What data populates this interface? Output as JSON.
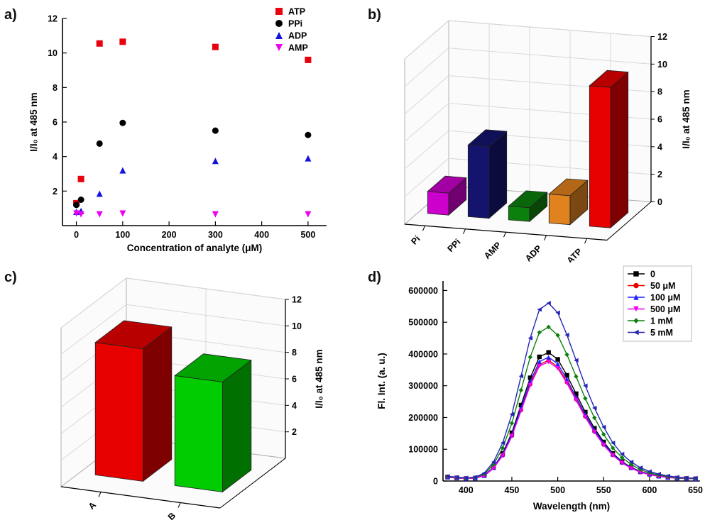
{
  "figure": {
    "panels": [
      {
        "label": "a)"
      },
      {
        "label": "b)"
      },
      {
        "label": "c)"
      },
      {
        "label": "d)"
      }
    ]
  },
  "chart_data": [
    {
      "panel": "a",
      "type": "scatter",
      "xlabel": "Concentration of analyte (μM)",
      "ylabel": "I/I₀ at 485 nm",
      "xlim": [
        -30,
        540
      ],
      "ylim": [
        0,
        12
      ],
      "xticks": [
        0,
        100,
        200,
        300,
        400,
        500
      ],
      "yticks": [
        2,
        4,
        6,
        8,
        10,
        12
      ],
      "grid": false,
      "legend_position": "top-right",
      "x": [
        0,
        10,
        50,
        100,
        300,
        500
      ],
      "series": [
        {
          "name": "ATP",
          "color": "#e8000d",
          "marker": "square",
          "values": [
            1.3,
            2.7,
            10.55,
            10.65,
            10.35,
            9.6
          ]
        },
        {
          "name": "PPi",
          "color": "#000000",
          "marker": "circle",
          "values": [
            1.2,
            1.5,
            4.75,
            5.95,
            5.5,
            5.25
          ]
        },
        {
          "name": "ADP",
          "color": "#1414e0",
          "marker": "triangle-up",
          "values": [
            0.8,
            0.85,
            1.85,
            3.2,
            3.75,
            3.9
          ]
        },
        {
          "name": "AMP",
          "color": "#f000f0",
          "marker": "triangle-down",
          "values": [
            0.7,
            0.65,
            0.65,
            0.7,
            0.65,
            0.65
          ]
        }
      ]
    },
    {
      "panel": "b",
      "type": "bar3d",
      "zlabel": "I/I₀ at 485 nm",
      "zlim": [
        0,
        12
      ],
      "zticks": [
        0,
        2,
        4,
        6,
        8,
        10,
        12
      ],
      "categories": [
        "Pi",
        "PPi",
        "AMP",
        "ADP",
        "ATP"
      ],
      "values": [
        1.6,
        5.2,
        1.0,
        2.1,
        10.2
      ],
      "colors": [
        "#cc00cc",
        "#14146e",
        "#0c800c",
        "#e0821e",
        "#e60000"
      ]
    },
    {
      "panel": "c",
      "type": "bar3d",
      "zlabel": "I/I₀ at 485 nm",
      "zlim": [
        0,
        12
      ],
      "zticks": [
        2,
        4,
        6,
        8,
        10,
        12
      ],
      "categories": [
        "A",
        "B"
      ],
      "values": [
        10,
        8.3
      ],
      "colors": [
        "#e60000",
        "#00cc00"
      ]
    },
    {
      "panel": "d",
      "type": "line",
      "xlabel": "Wavelength (nm)",
      "ylabel": "Fl. Int. (a. u.)",
      "xlim": [
        375,
        655
      ],
      "ylim": [
        0,
        630000
      ],
      "xticks": [
        400,
        450,
        500,
        550,
        600,
        650
      ],
      "yticks": [
        0,
        100000,
        200000,
        300000,
        400000,
        500000,
        600000
      ],
      "grid": false,
      "legend_position": "top-right",
      "x": [
        380,
        390,
        400,
        410,
        420,
        430,
        440,
        450,
        460,
        470,
        480,
        490,
        500,
        510,
        520,
        530,
        540,
        550,
        560,
        570,
        580,
        590,
        600,
        610,
        620,
        630,
        640,
        650
      ],
      "series": [
        {
          "name": "0",
          "color": "#000000",
          "marker": "square",
          "values": [
            13000,
            10000,
            8000,
            9000,
            18000,
            43000,
            87000,
            152000,
            239000,
            325000,
            391000,
            405000,
            383000,
            333000,
            275000,
            217000,
            166000,
            123000,
            87000,
            61000,
            43000,
            30000,
            22000,
            16000,
            12000,
            9000,
            8000,
            7000
          ]
        },
        {
          "name": "50 μM",
          "color": "#e60000",
          "marker": "circle",
          "values": [
            12000,
            9000,
            8000,
            9000,
            17000,
            41000,
            81000,
            143000,
            224000,
            305000,
            367000,
            380000,
            360000,
            312000,
            258000,
            204000,
            156000,
            115000,
            82000,
            58000,
            41000,
            28000,
            20000,
            15000,
            11000,
            9000,
            8000,
            7000
          ]
        },
        {
          "name": "100 μM",
          "color": "#2020ff",
          "marker": "triangle-up",
          "values": [
            12000,
            10000,
            8000,
            9000,
            17000,
            42000,
            84000,
            146000,
            230000,
            313000,
            376000,
            390000,
            369000,
            320000,
            264000,
            209000,
            160000,
            118000,
            84000,
            59000,
            42000,
            29000,
            21000,
            15000,
            11000,
            9000,
            8000,
            7000
          ]
        },
        {
          "name": "500 μM",
          "color": "#f000f0",
          "marker": "triangle-down",
          "values": [
            12000,
            9000,
            8000,
            9000,
            16000,
            40000,
            80000,
            141000,
            221000,
            301000,
            362000,
            375000,
            355000,
            308000,
            254000,
            201000,
            154000,
            113000,
            81000,
            57000,
            40000,
            28000,
            20000,
            15000,
            11000,
            9000,
            8000,
            7000
          ]
        },
        {
          "name": "1 mM",
          "color": "#0c800c",
          "marker": "diamond",
          "values": [
            14000,
            11000,
            9000,
            11000,
            22000,
            52000,
            104000,
            182000,
            286000,
            390000,
            468000,
            485000,
            459000,
            398000,
            329000,
            260000,
            199000,
            147000,
            104000,
            74000,
            52000,
            36000,
            26000,
            19000,
            14000,
            10000,
            9000,
            8000
          ]
        },
        {
          "name": "5 mM",
          "color": "#2525b5",
          "marker": "triangle-left",
          "values": [
            15000,
            12000,
            10000,
            12000,
            25000,
            60000,
            120000,
            210000,
            330000,
            450000,
            540000,
            560000,
            530000,
            460000,
            380000,
            300000,
            230000,
            170000,
            120000,
            85000,
            60000,
            42000,
            30000,
            22000,
            16000,
            12000,
            10000,
            9000
          ]
        }
      ]
    }
  ]
}
